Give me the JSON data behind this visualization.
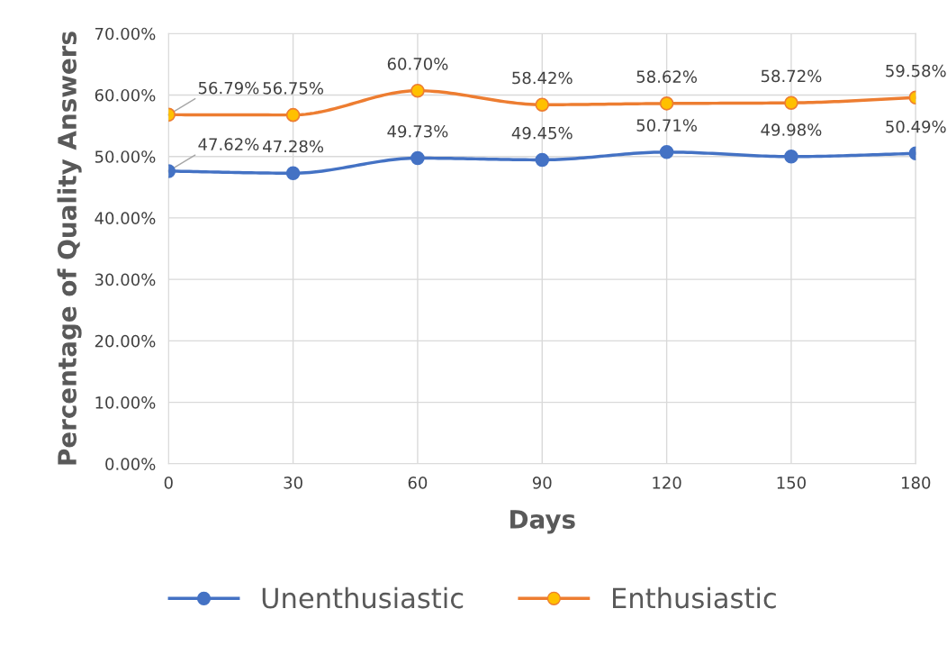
{
  "chart_data": {
    "type": "line",
    "xlabel": "Days",
    "ylabel": "Percentage of Quality Answers",
    "x": [
      0,
      30,
      60,
      90,
      120,
      150,
      180
    ],
    "series": [
      {
        "name": "Unenthusiastic",
        "color": "#4472c4",
        "values": [
          47.62,
          47.28,
          49.73,
          49.45,
          50.71,
          49.98,
          50.49
        ],
        "value_labels": [
          "47.62%",
          "47.28%",
          "49.73%",
          "49.45%",
          "50.71%",
          "49.98%",
          "50.49%"
        ]
      },
      {
        "name": "Enthusiastic",
        "color": "#ed7d31",
        "values": [
          56.79,
          56.75,
          60.7,
          58.42,
          58.62,
          58.72,
          59.58
        ],
        "value_labels": [
          "56.79%",
          "56.75%",
          "60.70%",
          "58.42%",
          "58.62%",
          "58.72%",
          "59.58%"
        ]
      }
    ],
    "xlim": [
      0,
      180
    ],
    "xticks": [
      0,
      30,
      60,
      90,
      120,
      150,
      180
    ],
    "ylim": [
      0,
      70
    ],
    "yticks": [
      {
        "value": 0,
        "label": "0.00%"
      },
      {
        "value": 10,
        "label": "10.00%"
      },
      {
        "value": 20,
        "label": "20.00%"
      },
      {
        "value": 30,
        "label": "30.00%"
      },
      {
        "value": 40,
        "label": "40.00%"
      },
      {
        "value": 50,
        "label": "50.00%"
      },
      {
        "value": 60,
        "label": "60.00%"
      },
      {
        "value": 70,
        "label": "70.00%"
      }
    ],
    "grid": true,
    "legend": "bottom",
    "marker": "circle",
    "line_style": "solid"
  }
}
